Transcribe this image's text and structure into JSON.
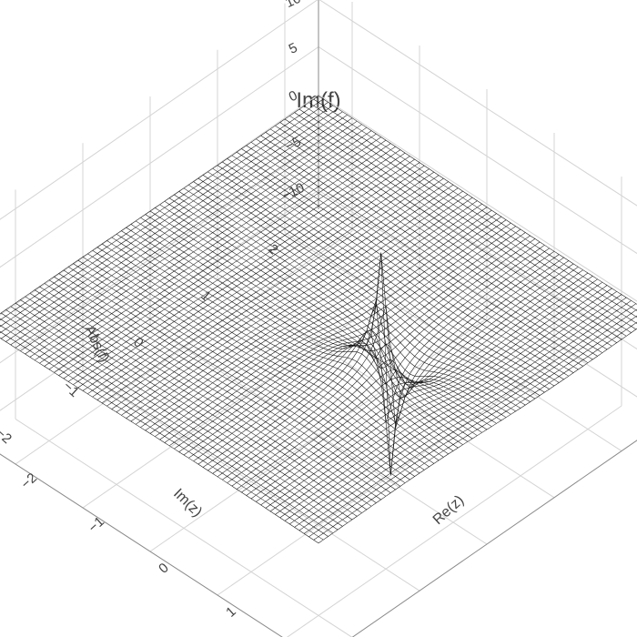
{
  "chart_data": {
    "type": "surface",
    "title": "Im(f)",
    "xlabel": "Re(z)",
    "ylabel": "Im(z)",
    "zlabel": "Abs(f)",
    "xlim": [
      -2.5,
      2.5
    ],
    "ylim": [
      -2.5,
      2.5
    ],
    "zlim": [
      -12,
      12
    ],
    "x_ticks": [
      "−2",
      "−1",
      "0",
      "1",
      "2"
    ],
    "y_ticks": [
      "−2",
      "−1",
      "0",
      "1",
      "2"
    ],
    "z_ticks": [
      "−10",
      "−5",
      "0",
      "5",
      "10"
    ],
    "x_tick_values": [
      -2,
      -1,
      0,
      1,
      2
    ],
    "y_tick_values": [
      -2,
      -1,
      0,
      1,
      2
    ],
    "z_tick_values": [
      -10,
      -5,
      0,
      5,
      10
    ],
    "surface_color": "#111111",
    "grid_color": "#d4d4d4",
    "grid": true,
    "poles": [
      {
        "re": 1.0,
        "im": 0.0
      }
    ],
    "grid_resolution": 70
  }
}
